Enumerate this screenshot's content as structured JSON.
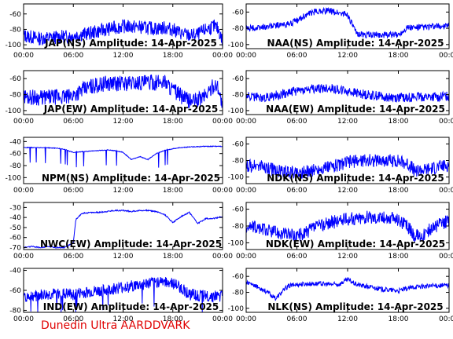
{
  "footer_label": "Dunedin Ultra AARDDVARK",
  "colors": {
    "trace": "#0000ff",
    "axes": "#000000",
    "footer": "#e00000"
  },
  "chart_data": [
    {
      "type": "line",
      "title": "JAP(NS) Amplitude: 14-Apr-2025",
      "x_ticks": [
        "00:00",
        "06:00",
        "12:00",
        "18:00",
        "00:00"
      ],
      "y_ticks": [
        -60,
        -80,
        -100
      ],
      "ylim": [
        -105,
        -47
      ],
      "series": [
        {
          "x": [
            0,
            2,
            4,
            5.5,
            6,
            8,
            10,
            12,
            14,
            16,
            17,
            18,
            19,
            20,
            21,
            22,
            23,
            23.5,
            24
          ],
          "y": [
            -88,
            -92,
            -90,
            -89,
            -88,
            -85,
            -80,
            -76,
            -77,
            -79,
            -78,
            -80,
            -85,
            -88,
            -87,
            -80,
            -76,
            -80,
            -96
          ],
          "band": 9
        }
      ]
    },
    {
      "type": "line",
      "title": "NAA(NS) Amplitude: 14-Apr-2025",
      "x_ticks": [
        "00:00",
        "06:00",
        "12:00",
        "18:00",
        "00:00"
      ],
      "y_ticks": [
        -60,
        -80,
        -100
      ],
      "ylim": [
        -105,
        -50
      ],
      "series": [
        {
          "x": [
            0,
            1,
            3,
            5,
            6,
            7,
            8,
            9,
            10,
            11,
            12,
            13,
            14,
            16,
            18,
            19,
            20,
            22,
            24
          ],
          "y": [
            -80,
            -80,
            -77,
            -75,
            -71,
            -64,
            -60,
            -58,
            -59,
            -61,
            -63,
            -86,
            -88,
            -88,
            -88,
            -79,
            -79,
            -78,
            -77
          ],
          "band": 4
        }
      ]
    },
    {
      "type": "line",
      "title": "JAP(EW) Amplitude: 14-Apr-2025",
      "x_ticks": [
        "00:00",
        "06:00",
        "12:00",
        "18:00",
        "00:00"
      ],
      "y_ticks": [
        -60,
        -80,
        -100
      ],
      "ylim": [
        -105,
        -50
      ],
      "series": [
        {
          "x": [
            0,
            2,
            4,
            5.5,
            6,
            8,
            10,
            12,
            14,
            16,
            17,
            18,
            19,
            20,
            21,
            22,
            23,
            23.5,
            24
          ],
          "y": [
            -82,
            -84,
            -83,
            -83,
            -80,
            -70,
            -66,
            -66,
            -65,
            -65,
            -63,
            -74,
            -82,
            -88,
            -87,
            -80,
            -68,
            -70,
            -98
          ],
          "band": 10
        }
      ]
    },
    {
      "type": "line",
      "title": "NAA(EW) Amplitude: 14-Apr-2025",
      "x_ticks": [
        "00:00",
        "06:00",
        "12:00",
        "18:00",
        "00:00"
      ],
      "y_ticks": [
        -60,
        -80,
        -100
      ],
      "ylim": [
        -105,
        -50
      ],
      "series": [
        {
          "x": [
            0,
            2,
            4,
            6,
            8,
            10,
            12,
            14,
            16,
            18,
            19,
            20,
            22,
            24
          ],
          "y": [
            -82,
            -84,
            -80,
            -75,
            -73,
            -72,
            -76,
            -80,
            -82,
            -84,
            -83,
            -83,
            -83,
            -82
          ],
          "band": 6
        }
      ]
    },
    {
      "type": "line",
      "title": "NPM(NS) Amplitude: 14-Apr-2025",
      "x_ticks": [
        "00:00",
        "06:00",
        "12:00",
        "18:00",
        "00:00"
      ],
      "y_ticks": [
        -40,
        -60,
        -80,
        -100
      ],
      "ylim": [
        -110,
        -33
      ],
      "series": [
        {
          "x": [
            0,
            2,
            4,
            5,
            5.5,
            6,
            7,
            8,
            10,
            11,
            12,
            13,
            14,
            15,
            16,
            17,
            18,
            19,
            20,
            22,
            24
          ],
          "y": [
            -50,
            -50,
            -51,
            -53,
            -56,
            -58,
            -57,
            -56,
            -54,
            -55,
            -58,
            -70,
            -65,
            -70,
            -60,
            -55,
            -52,
            -50,
            -49,
            -48,
            -48
          ],
          "band": 1
        }
      ]
    },
    {
      "type": "line",
      "title": "NDK(NS) Amplitude: 14-Apr-2025",
      "x_ticks": [
        "00:00",
        "06:00",
        "12:00",
        "18:00",
        "00:00"
      ],
      "y_ticks": [
        -60,
        -80,
        -100
      ],
      "ylim": [
        -108,
        -52
      ],
      "series": [
        {
          "x": [
            0,
            2,
            4,
            6,
            7,
            8,
            10,
            12,
            14,
            16,
            18,
            19,
            20,
            21,
            22,
            24
          ],
          "y": [
            -86,
            -88,
            -93,
            -95,
            -94,
            -92,
            -88,
            -82,
            -80,
            -80,
            -81,
            -84,
            -92,
            -92,
            -90,
            -86
          ],
          "band": 8
        }
      ]
    },
    {
      "type": "line",
      "title": "NWC(EW) Amplitude: 14-Apr-2025",
      "x_ticks": [
        "00:00",
        "06:00",
        "12:00",
        "18:00",
        "00:00"
      ],
      "y_ticks": [
        -30,
        -40,
        -50,
        -60,
        -70
      ],
      "ylim": [
        -72,
        -25
      ],
      "series": [
        {
          "x": [
            0,
            1,
            2,
            3,
            4,
            5,
            6,
            6.3,
            6.6,
            7,
            8,
            9,
            10,
            11,
            12,
            13,
            14,
            15,
            16,
            17,
            18,
            19,
            20,
            21,
            22,
            23,
            24
          ],
          "y": [
            -70,
            -69,
            -70,
            -69,
            -70,
            -70,
            -65,
            -42,
            -40,
            -36,
            -35,
            -35,
            -34,
            -33,
            -33,
            -34,
            -33,
            -33,
            -34,
            -37,
            -45,
            -39,
            -35,
            -46,
            -41,
            -41,
            -39
          ],
          "band": 1
        }
      ]
    },
    {
      "type": "line",
      "title": "NDK(EW) Amplitude: 14-Apr-2025",
      "x_ticks": [
        "00:00",
        "06:00",
        "12:00",
        "18:00",
        "00:00"
      ],
      "y_ticks": [
        -60,
        -80,
        -100
      ],
      "ylim": [
        -108,
        -52
      ],
      "series": [
        {
          "x": [
            0,
            2,
            4,
            6,
            7,
            8,
            10,
            12,
            14,
            16,
            18,
            19,
            20,
            21,
            22,
            24
          ],
          "y": [
            -80,
            -84,
            -88,
            -92,
            -88,
            -82,
            -76,
            -72,
            -70,
            -70,
            -72,
            -80,
            -92,
            -90,
            -82,
            -74
          ],
          "band": 8
        }
      ]
    },
    {
      "type": "line",
      "title": "IND(EW) Amplitude: 14-Apr-2025",
      "x_ticks": [
        "00:00",
        "06:00",
        "12:00",
        "18:00",
        "00:00"
      ],
      "y_ticks": [
        -40,
        -60,
        -80
      ],
      "ylim": [
        -82,
        -38
      ],
      "series": [
        {
          "x": [
            0,
            2,
            4,
            6,
            8,
            10,
            12,
            14,
            16,
            17,
            18,
            19,
            20,
            22,
            24
          ],
          "y": [
            -66,
            -65,
            -64,
            -64,
            -62,
            -60,
            -57,
            -55,
            -52,
            -50,
            -53,
            -58,
            -64,
            -66,
            -66
          ],
          "band": 6
        }
      ]
    },
    {
      "type": "line",
      "title": "NLK(NS) Amplitude: 14-Apr-2025",
      "x_ticks": [
        "00:00",
        "06:00",
        "12:00",
        "18:00",
        "00:00"
      ],
      "y_ticks": [
        -60,
        -80,
        -100
      ],
      "ylim": [
        -105,
        -50
      ],
      "series": [
        {
          "x": [
            0,
            1,
            2,
            3,
            3.5,
            4,
            5,
            6,
            8,
            10,
            11,
            12,
            13,
            14,
            15,
            16,
            18,
            20,
            22,
            24
          ],
          "y": [
            -68,
            -72,
            -76,
            -84,
            -88,
            -82,
            -72,
            -70,
            -69,
            -70,
            -70,
            -64,
            -70,
            -72,
            -74,
            -76,
            -78,
            -73,
            -72,
            -71
          ],
          "band": 3
        }
      ]
    }
  ]
}
